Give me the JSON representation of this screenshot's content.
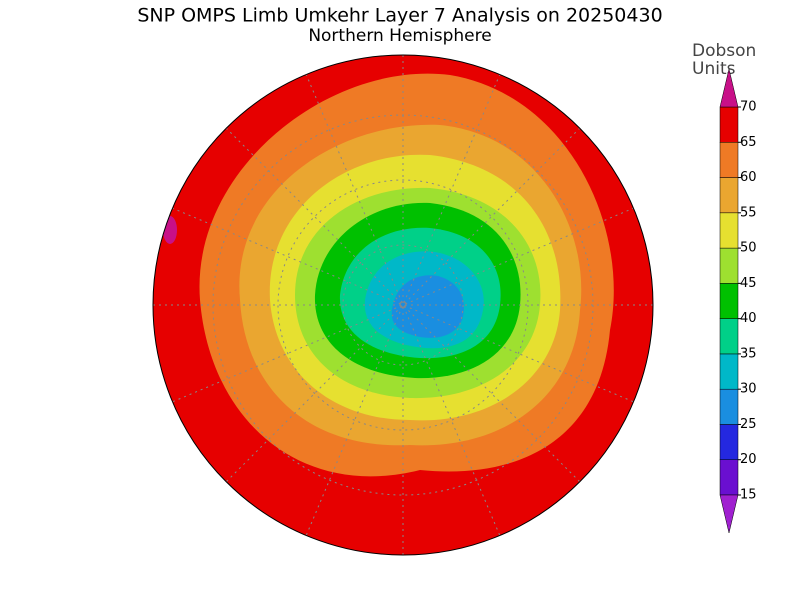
{
  "header": {
    "title": "SNP OMPS Limb Umkehr Layer 7 Analysis on 20250430",
    "subtitle": "Northern Hemisphere"
  },
  "colorbar": {
    "unit_line1": "Dobson",
    "unit_line2": "Units",
    "ticks": [
      15,
      20,
      25,
      30,
      35,
      40,
      45,
      50,
      55,
      60,
      65,
      70
    ],
    "colors": [
      "#6a0fd0",
      "#2428e0",
      "#1a8ee0",
      "#00b8c8",
      "#00d088",
      "#00c000",
      "#9ee030",
      "#e6e030",
      "#eaa630",
      "#ef7a25",
      "#e60000"
    ],
    "under_color": "#a020d0",
    "over_color": "#c81088"
  }
}
